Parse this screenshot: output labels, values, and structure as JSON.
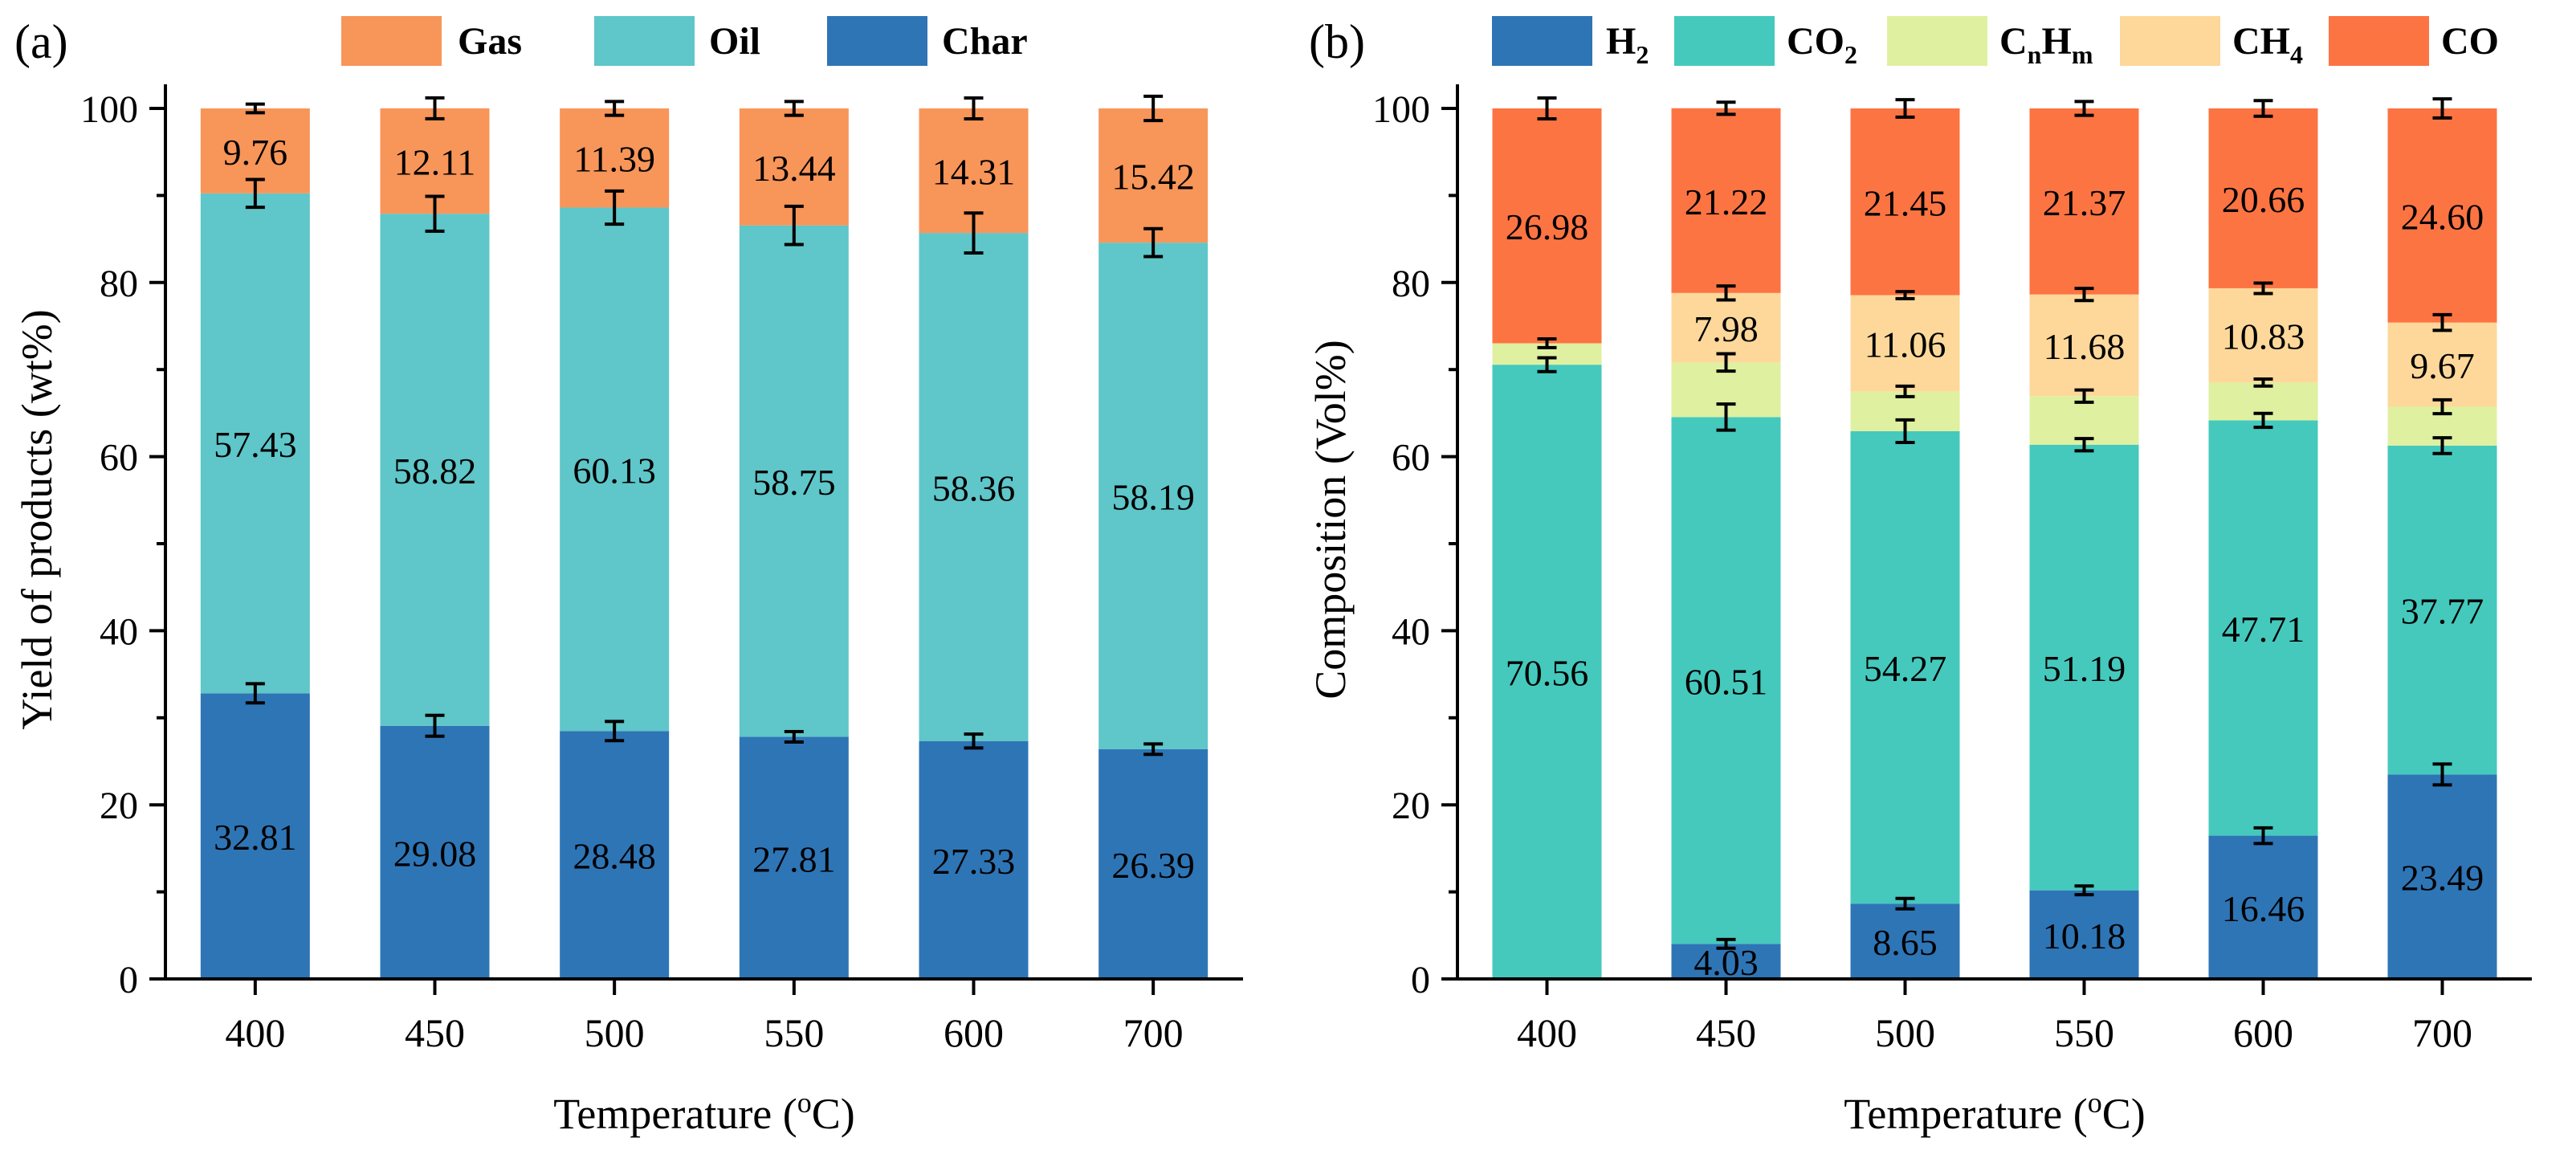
{
  "colors": {
    "char": "#2e75b6",
    "oil": "#5fc6c9",
    "gas": "#f89559",
    "h2": "#2e75b6",
    "co2": "#45c9bd",
    "cnhm": "#dff0a0",
    "ch4": "#fdd89a",
    "co": "#fd7443"
  },
  "chart_data": [
    {
      "panel_label": "(a)",
      "type": "bar",
      "stacked": true,
      "xlabel": "Temperature (oC)",
      "ylabel": "Yield of products (wt%)",
      "ylim": [
        0,
        100
      ],
      "yticks": [
        "0",
        "20",
        "40",
        "60",
        "80",
        "100"
      ],
      "categories": [
        "400",
        "450",
        "500",
        "550",
        "600",
        "700"
      ],
      "legend": [
        "Gas",
        "Oil",
        "Char"
      ],
      "series": [
        {
          "key": "char",
          "name": "Char",
          "color_key": "char",
          "values": [
            32.81,
            29.08,
            28.48,
            27.81,
            27.33,
            26.39
          ],
          "labels": [
            "32.81",
            "29.08",
            "28.48",
            "27.81",
            "27.33",
            "26.39"
          ],
          "errors": [
            1.1,
            1.2,
            1.1,
            0.6,
            0.8,
            0.6
          ]
        },
        {
          "key": "oil",
          "name": "Oil",
          "color_key": "oil",
          "values": [
            57.43,
            58.82,
            60.13,
            58.75,
            58.36,
            58.19
          ],
          "labels": [
            "57.43",
            "58.82",
            "60.13",
            "58.75",
            "58.36",
            "58.19"
          ],
          "errors": [
            1.6,
            2.0,
            1.9,
            2.2,
            2.3,
            1.6
          ]
        },
        {
          "key": "gas",
          "name": "Gas",
          "color_key": "gas",
          "values": [
            9.76,
            12.11,
            11.39,
            13.44,
            14.31,
            15.42
          ],
          "labels": [
            "9.76",
            "12.11",
            "11.39",
            "13.44",
            "14.31",
            "15.42"
          ],
          "errors": [
            0.5,
            1.2,
            0.8,
            0.8,
            1.2,
            1.4
          ]
        }
      ]
    },
    {
      "panel_label": "(b)",
      "type": "bar",
      "stacked": true,
      "xlabel": "Temperature (oC)",
      "ylabel": "Composition (Vol%)",
      "ylim": [
        0,
        100
      ],
      "yticks": [
        "0",
        "20",
        "40",
        "60",
        "80",
        "100"
      ],
      "categories": [
        "400",
        "450",
        "500",
        "550",
        "600",
        "700"
      ],
      "legend": [
        "H2",
        "CO2",
        "CnHm",
        "CH4",
        "CO"
      ],
      "series": [
        {
          "key": "h2",
          "name": "H2",
          "color_key": "h2",
          "values": [
            0,
            4.03,
            8.65,
            10.18,
            16.46,
            23.49
          ],
          "labels": [
            "",
            "4.03",
            "8.65",
            "10.18",
            "16.46",
            "23.49"
          ],
          "errors": [
            0,
            0.5,
            0.6,
            0.5,
            0.9,
            1.2
          ]
        },
        {
          "key": "co2",
          "name": "CO2",
          "color_key": "co2",
          "values": [
            70.56,
            60.51,
            54.27,
            51.19,
            47.71,
            37.77
          ],
          "labels": [
            "70.56",
            "60.51",
            "54.27",
            "51.19",
            "47.71",
            "37.77"
          ],
          "errors": [
            0.8,
            1.5,
            1.3,
            0.7,
            0.8,
            0.9
          ]
        },
        {
          "key": "cnhm",
          "name": "CnHm",
          "color_key": "cnhm",
          "values": [
            2.46,
            6.28,
            4.57,
            5.58,
            4.34,
            4.47
          ],
          "labels": [
            "",
            "",
            "",
            "",
            "",
            ""
          ],
          "errors": [
            0.5,
            1.0,
            0.6,
            0.7,
            0.4,
            0.8
          ]
        },
        {
          "key": "ch4",
          "name": "CH4",
          "color_key": "ch4",
          "values": [
            0,
            7.98,
            11.06,
            11.68,
            10.83,
            9.67
          ],
          "labels": [
            "",
            "7.98",
            "11.06",
            "11.68",
            "10.83",
            "9.67"
          ],
          "errors": [
            0,
            0.8,
            0.4,
            0.7,
            0.6,
            0.9
          ]
        },
        {
          "key": "co",
          "name": "CO",
          "color_key": "co",
          "values": [
            26.98,
            21.22,
            21.45,
            21.37,
            20.66,
            24.6
          ],
          "labels": [
            "26.98",
            "21.22",
            "21.45",
            "21.37",
            "20.66",
            "24.60"
          ],
          "errors": [
            1.2,
            0.7,
            1.0,
            0.8,
            0.9,
            1.1
          ]
        }
      ]
    }
  ]
}
